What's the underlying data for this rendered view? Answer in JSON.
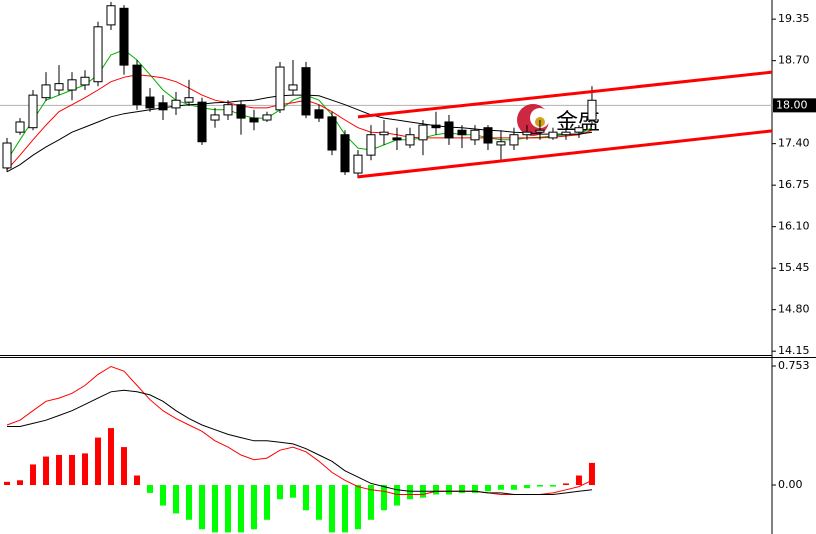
{
  "chart_data": [
    {
      "type": "candlestick",
      "xlim": [
        -0.54,
        58.85
      ],
      "ylim": [
        14.09,
        19.65
      ],
      "yticks": [
        19.35,
        {
          "value": 18.7,
          "label": "18.70"
        },
        {
          "value": 17.4,
          "label": "17.40"
        },
        16.75,
        {
          "value": 16.1,
          "label": "16.10"
        },
        15.45,
        {
          "value": 14.8,
          "label": "14.80"
        },
        14.15
      ],
      "up_color": "#ffffff",
      "down_color": "#000000",
      "open": [
        17.02,
        17.58,
        17.65,
        18.12,
        18.24,
        18.24,
        18.32,
        18.37,
        19.26,
        19.52,
        18.63,
        18.13,
        18.04,
        17.96,
        18.05,
        18.05,
        17.77,
        17.85,
        18.01,
        17.8,
        17.77,
        17.93,
        18.24,
        18.59,
        17.93,
        17.82,
        17.54,
        16.94,
        17.22,
        17.54,
        17.49,
        17.38,
        17.46,
        17.69,
        17.74,
        17.61,
        17.46,
        17.65,
        17.38,
        17.38,
        17.54,
        17.58,
        17.49,
        17.54,
        17.58,
        17.77
      ],
      "high": [
        17.49,
        17.8,
        18.24,
        18.52,
        18.63,
        18.52,
        18.55,
        19.31,
        19.62,
        19.57,
        18.71,
        18.27,
        18.16,
        18.21,
        18.4,
        18.12,
        17.96,
        18.08,
        18.08,
        17.93,
        17.9,
        18.68,
        18.71,
        18.68,
        18.01,
        17.9,
        17.61,
        17.3,
        17.69,
        17.77,
        17.65,
        17.65,
        17.77,
        17.9,
        17.85,
        17.69,
        17.69,
        17.69,
        17.61,
        17.65,
        17.69,
        17.77,
        17.65,
        17.65,
        17.69,
        18.3
      ],
      "low": [
        16.96,
        17.54,
        17.61,
        18.07,
        18.16,
        18.08,
        18.24,
        18.3,
        19.18,
        18.48,
        17.93,
        17.9,
        17.77,
        17.85,
        17.99,
        17.38,
        17.65,
        17.77,
        17.54,
        17.61,
        17.74,
        17.88,
        18.16,
        17.8,
        17.74,
        17.22,
        16.91,
        16.86,
        17.14,
        17.38,
        17.3,
        17.33,
        17.22,
        17.54,
        17.38,
        17.33,
        17.38,
        17.3,
        17.14,
        17.3,
        17.46,
        17.46,
        17.46,
        17.46,
        17.49,
        17.69
      ],
      "close": [
        17.41,
        17.74,
        18.16,
        18.32,
        18.34,
        18.4,
        18.44,
        19.23,
        19.56,
        18.63,
        18.01,
        17.96,
        17.93,
        18.08,
        18.12,
        17.43,
        17.85,
        18.01,
        17.8,
        17.74,
        17.85,
        18.6,
        18.32,
        17.85,
        17.8,
        17.3,
        16.96,
        17.22,
        17.54,
        17.58,
        17.46,
        17.54,
        17.69,
        17.65,
        17.49,
        17.54,
        17.61,
        17.41,
        17.43,
        17.54,
        17.58,
        17.61,
        17.58,
        17.58,
        17.65,
        18.08
      ],
      "lines": [
        {
          "color": "#00b000",
          "values": [
            17.14,
            17.46,
            17.77,
            18.08,
            18.16,
            18.24,
            18.32,
            18.48,
            18.79,
            18.87,
            18.71,
            18.48,
            18.24,
            18.08,
            18.01,
            17.96,
            17.93,
            17.93,
            17.85,
            17.8,
            17.8,
            17.93,
            18.08,
            18.16,
            18.08,
            17.85,
            17.54,
            17.33,
            17.3,
            17.38,
            17.46,
            17.46,
            17.49,
            17.54,
            17.57,
            17.54,
            17.54,
            17.49,
            17.46,
            17.46,
            17.49,
            17.5,
            17.52,
            17.54,
            17.55,
            17.65
          ]
        },
        {
          "color": "#ff0000",
          "values": [
            16.99,
            17.22,
            17.46,
            17.69,
            17.9,
            18.01,
            18.12,
            18.24,
            18.37,
            18.44,
            18.48,
            18.46,
            18.43,
            18.37,
            18.27,
            18.16,
            18.08,
            18.04,
            17.99,
            17.96,
            17.96,
            18.01,
            18.04,
            18.08,
            18.01,
            17.9,
            17.77,
            17.65,
            17.58,
            17.57,
            17.54,
            17.5,
            17.49,
            17.49,
            17.49,
            17.49,
            17.49,
            17.49,
            17.49,
            17.49,
            17.49,
            17.49,
            17.5,
            17.52,
            17.54,
            17.61
          ]
        },
        {
          "color": "#000000",
          "values": [
            16.96,
            17.07,
            17.22,
            17.35,
            17.46,
            17.58,
            17.66,
            17.74,
            17.82,
            17.87,
            17.9,
            17.93,
            17.96,
            17.99,
            18.01,
            18.02,
            18.04,
            18.05,
            18.07,
            18.08,
            18.12,
            18.15,
            18.16,
            18.16,
            18.15,
            18.08,
            18.01,
            17.93,
            17.85,
            17.8,
            17.77,
            17.74,
            17.71,
            17.68,
            17.66,
            17.65,
            17.63,
            17.61,
            17.6,
            17.58,
            17.57,
            17.55,
            17.55,
            17.55,
            17.55,
            17.58
          ]
        }
      ],
      "channels": [
        {
          "color": "#ff0000",
          "x": [
            27,
            58.85
          ],
          "y": [
            17.82,
            18.52
          ]
        },
        {
          "color": "#ff0000",
          "x": [
            27,
            58.85
          ],
          "y": [
            16.88,
            17.6
          ]
        }
      ],
      "last_price": {
        "value": 18.0,
        "label": "18.00"
      },
      "watermark": "金盛"
    },
    {
      "type": "macd",
      "xlim": [
        -0.54,
        58.85
      ],
      "ylim": [
        -0.31,
        0.81
      ],
      "yticks": [
        0.753,
        {
          "value": 0,
          "label": "0.00"
        }
      ],
      "up_color": "#ff0000",
      "down_color": "#00ff00",
      "histogram": [
        0.02,
        0.03,
        0.13,
        0.18,
        0.19,
        0.19,
        0.2,
        0.3,
        0.36,
        0.24,
        0.06,
        -0.05,
        -0.13,
        -0.18,
        -0.22,
        -0.28,
        -0.3,
        -0.3,
        -0.3,
        -0.28,
        -0.22,
        -0.09,
        -0.08,
        -0.16,
        -0.22,
        -0.3,
        -0.3,
        -0.28,
        -0.22,
        -0.16,
        -0.13,
        -0.09,
        -0.08,
        -0.06,
        -0.06,
        -0.05,
        -0.05,
        -0.04,
        -0.03,
        -0.03,
        -0.02,
        -0.01,
        -0.01,
        0.01,
        0.06,
        0.14
      ],
      "lines": [
        {
          "color": "#ff0000",
          "values": [
            0.38,
            0.41,
            0.47,
            0.53,
            0.55,
            0.58,
            0.63,
            0.7,
            0.75,
            0.72,
            0.63,
            0.54,
            0.47,
            0.42,
            0.38,
            0.34,
            0.28,
            0.24,
            0.19,
            0.16,
            0.17,
            0.22,
            0.24,
            0.21,
            0.15,
            0.08,
            0.03,
            -0.01,
            -0.03,
            -0.04,
            -0.06,
            -0.06,
            -0.06,
            -0.04,
            -0.04,
            -0.04,
            -0.04,
            -0.05,
            -0.06,
            -0.06,
            -0.06,
            -0.06,
            -0.05,
            -0.03,
            -0.01,
            0.03
          ]
        },
        {
          "color": "#000000",
          "values": [
            0.37,
            0.37,
            0.39,
            0.41,
            0.44,
            0.47,
            0.51,
            0.55,
            0.59,
            0.6,
            0.59,
            0.57,
            0.53,
            0.47,
            0.42,
            0.38,
            0.35,
            0.32,
            0.3,
            0.28,
            0.28,
            0.27,
            0.26,
            0.23,
            0.19,
            0.15,
            0.09,
            0.05,
            0.01,
            -0.01,
            -0.03,
            -0.04,
            -0.04,
            -0.04,
            -0.04,
            -0.04,
            -0.04,
            -0.05,
            -0.05,
            -0.06,
            -0.06,
            -0.06,
            -0.06,
            -0.05,
            -0.04,
            -0.03
          ]
        }
      ]
    }
  ]
}
